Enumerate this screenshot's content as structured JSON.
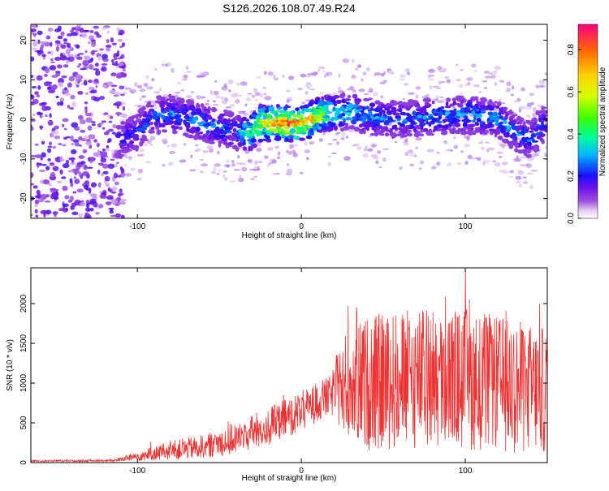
{
  "chart_data": [
    {
      "type": "heatmap",
      "title": "S126.2026.108.07.49.R24",
      "xlabel": "Height of straight line (km)",
      "ylabel": "Frequency (Hz)",
      "xlim": [
        -165,
        150
      ],
      "ylim": [
        -25,
        24
      ],
      "x_ticks": [
        -100,
        0,
        100
      ],
      "y_ticks": [
        -20,
        -10,
        0,
        10,
        20
      ],
      "colorbar": {
        "label": "Normalized spectral amplitude",
        "range": [
          0,
          0.92
        ],
        "ticks": [
          0.0,
          0.2,
          0.4,
          0.6,
          0.8
        ],
        "colormap": "rainbow"
      },
      "band_center_hz": [
        {
          "x": -110,
          "y": -5.0
        },
        {
          "x": -100,
          "y": -3.0
        },
        {
          "x": -90,
          "y": 1.0
        },
        {
          "x": -80,
          "y": 1.5
        },
        {
          "x": -70,
          "y": 0.5
        },
        {
          "x": -60,
          "y": -1.0
        },
        {
          "x": -50,
          "y": -2.0
        },
        {
          "x": -40,
          "y": -3.0
        },
        {
          "x": -32,
          "y": -3.5
        },
        {
          "x": -25,
          "y": -1.0
        },
        {
          "x": -15,
          "y": -1.0
        },
        {
          "x": 0,
          "y": -1.0
        },
        {
          "x": 15,
          "y": 1.5
        },
        {
          "x": 30,
          "y": 2.0
        },
        {
          "x": 45,
          "y": 0.5
        },
        {
          "x": 60,
          "y": 0.0
        },
        {
          "x": 75,
          "y": 0.5
        },
        {
          "x": 90,
          "y": 1.0
        },
        {
          "x": 105,
          "y": 1.0
        },
        {
          "x": 120,
          "y": 0.0
        },
        {
          "x": 133,
          "y": -4.0
        },
        {
          "x": 140,
          "y": -5.0
        },
        {
          "x": 148,
          "y": -1.0
        }
      ],
      "band_peak_amplitude": [
        {
          "x": -110,
          "v": 0.25
        },
        {
          "x": -90,
          "v": 0.3
        },
        {
          "x": -60,
          "v": 0.35
        },
        {
          "x": -40,
          "v": 0.3
        },
        {
          "x": -25,
          "v": 0.7
        },
        {
          "x": -10,
          "v": 0.9
        },
        {
          "x": 5,
          "v": 0.8
        },
        {
          "x": 20,
          "v": 0.45
        },
        {
          "x": 60,
          "v": 0.3
        },
        {
          "x": 90,
          "v": 0.35
        },
        {
          "x": 120,
          "v": 0.35
        },
        {
          "x": 148,
          "v": 0.3
        }
      ],
      "noise_region_x": [
        -165,
        -108
      ]
    },
    {
      "type": "line",
      "xlabel": "Height of straight line (km)",
      "ylabel": "SNR (10 * v/v)",
      "xlim": [
        -165,
        150
      ],
      "ylim": [
        0,
        2450
      ],
      "x_ticks": [
        -100,
        0,
        100
      ],
      "y_ticks": [
        0,
        500,
        1000,
        1500,
        2000
      ],
      "color": "#ee3333",
      "envelope": [
        {
          "x": -165,
          "mean": 20,
          "amp": 10
        },
        {
          "x": -115,
          "mean": 25,
          "amp": 15
        },
        {
          "x": -100,
          "mean": 80,
          "amp": 60
        },
        {
          "x": -80,
          "mean": 150,
          "amp": 120
        },
        {
          "x": -60,
          "mean": 200,
          "amp": 150
        },
        {
          "x": -40,
          "mean": 300,
          "amp": 200
        },
        {
          "x": -20,
          "mean": 450,
          "amp": 250
        },
        {
          "x": 0,
          "mean": 650,
          "amp": 250
        },
        {
          "x": 18,
          "mean": 850,
          "amp": 250
        },
        {
          "x": 25,
          "mean": 1000,
          "amp": 600
        },
        {
          "x": 40,
          "mean": 1000,
          "amp": 850
        },
        {
          "x": 70,
          "mean": 1050,
          "amp": 900
        },
        {
          "x": 100,
          "mean": 1050,
          "amp": 900
        },
        {
          "x": 130,
          "mean": 950,
          "amp": 850
        },
        {
          "x": 150,
          "mean": 900,
          "amp": 800
        }
      ]
    }
  ]
}
